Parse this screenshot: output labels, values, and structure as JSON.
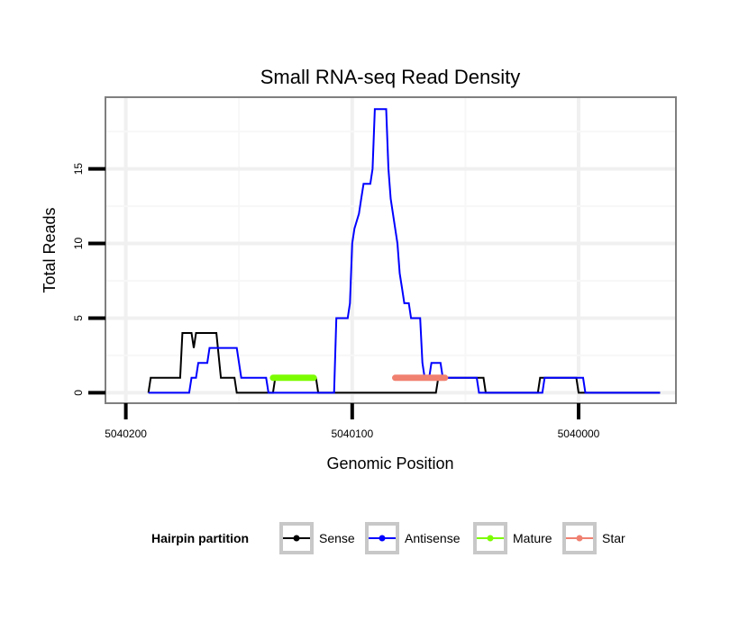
{
  "chart_data": {
    "type": "line",
    "title": "Small RNA-seq Read Density",
    "xlabel": "Genomic Position",
    "ylabel": "Total Reads",
    "xlim": [
      5040209,
      5039957
    ],
    "ylim": [
      -0.7,
      19.8
    ],
    "x_ticks": [
      {
        "value": 5040200,
        "label": "5040200"
      },
      {
        "value": 5040100,
        "label": "5040100"
      },
      {
        "value": 5040000,
        "label": "5040000"
      }
    ],
    "y_ticks": [
      {
        "value": 0,
        "label": "0"
      },
      {
        "value": 5,
        "label": "5"
      },
      {
        "value": 10,
        "label": "10"
      },
      {
        "value": 15,
        "label": "15"
      }
    ],
    "x_minor_gridlines": [
      5040150,
      5040050
    ],
    "y_minor_gridlines": [
      2.5,
      7.5,
      12.5,
      17.5
    ],
    "grid": true,
    "legend": {
      "title": "Hairpin partition",
      "position": "bottom",
      "entries": [
        {
          "label": "Sense",
          "color": "#000000"
        },
        {
          "label": "Antisense",
          "color": "#0000ff"
        },
        {
          "label": "Mature",
          "color": "#7cfc00"
        },
        {
          "label": "Star",
          "color": "#f08070"
        }
      ]
    },
    "series": [
      {
        "name": "Sense",
        "color": "#000000",
        "points": [
          [
            5040190,
            0
          ],
          [
            5040189,
            1
          ],
          [
            5040176,
            1
          ],
          [
            5040175,
            4
          ],
          [
            5040171,
            4
          ],
          [
            5040170,
            3
          ],
          [
            5040169,
            4
          ],
          [
            5040160,
            4
          ],
          [
            5040158,
            1
          ],
          [
            5040152,
            1
          ],
          [
            5040151,
            0
          ],
          [
            5040135,
            0
          ],
          [
            5040134,
            1
          ],
          [
            5040116,
            1
          ],
          [
            5040115,
            0
          ],
          [
            5040063,
            0
          ],
          [
            5040062,
            1
          ],
          [
            5040042,
            1
          ],
          [
            5040041,
            0
          ],
          [
            5040018,
            0
          ],
          [
            5040017,
            1
          ],
          [
            5040001,
            1
          ],
          [
            5040000,
            0
          ],
          [
            5039964,
            0
          ]
        ]
      },
      {
        "name": "Antisense",
        "color": "#0000ff",
        "points": [
          [
            5040190,
            0
          ],
          [
            5040172,
            0
          ],
          [
            5040171,
            1
          ],
          [
            5040169,
            1
          ],
          [
            5040168,
            2
          ],
          [
            5040164,
            2
          ],
          [
            5040163,
            3
          ],
          [
            5040151,
            3
          ],
          [
            5040149,
            1
          ],
          [
            5040138,
            1
          ],
          [
            5040137,
            0
          ],
          [
            5040108,
            0
          ],
          [
            5040107,
            5
          ],
          [
            5040102,
            5
          ],
          [
            5040101,
            6
          ],
          [
            5040100,
            10
          ],
          [
            5040099,
            11
          ],
          [
            5040097,
            12
          ],
          [
            5040096,
            13
          ],
          [
            5040095,
            14
          ],
          [
            5040092,
            14
          ],
          [
            5040091,
            15
          ],
          [
            5040090,
            19
          ],
          [
            5040085,
            19
          ],
          [
            5040084,
            15
          ],
          [
            5040083,
            13
          ],
          [
            5040081,
            11
          ],
          [
            5040080,
            10
          ],
          [
            5040079,
            8
          ],
          [
            5040078,
            7
          ],
          [
            5040077,
            6
          ],
          [
            5040075,
            6
          ],
          [
            5040074,
            5
          ],
          [
            5040070,
            5
          ],
          [
            5040069,
            2
          ],
          [
            5040068,
            1
          ],
          [
            5040066,
            1
          ],
          [
            5040065,
            2
          ],
          [
            5040061,
            2
          ],
          [
            5040060,
            1
          ],
          [
            5040045,
            1
          ],
          [
            5040044,
            0
          ],
          [
            5040016,
            0
          ],
          [
            5040015,
            1
          ],
          [
            5039998,
            1
          ],
          [
            5039997,
            0
          ],
          [
            5039964,
            0
          ]
        ]
      },
      {
        "name": "Mature",
        "color": "#7cfc00",
        "points": [
          [
            5040135,
            1
          ],
          [
            5040117,
            1
          ]
        ]
      },
      {
        "name": "Star",
        "color": "#f08070",
        "points": [
          [
            5040081,
            1
          ],
          [
            5040059,
            1
          ]
        ]
      }
    ]
  }
}
